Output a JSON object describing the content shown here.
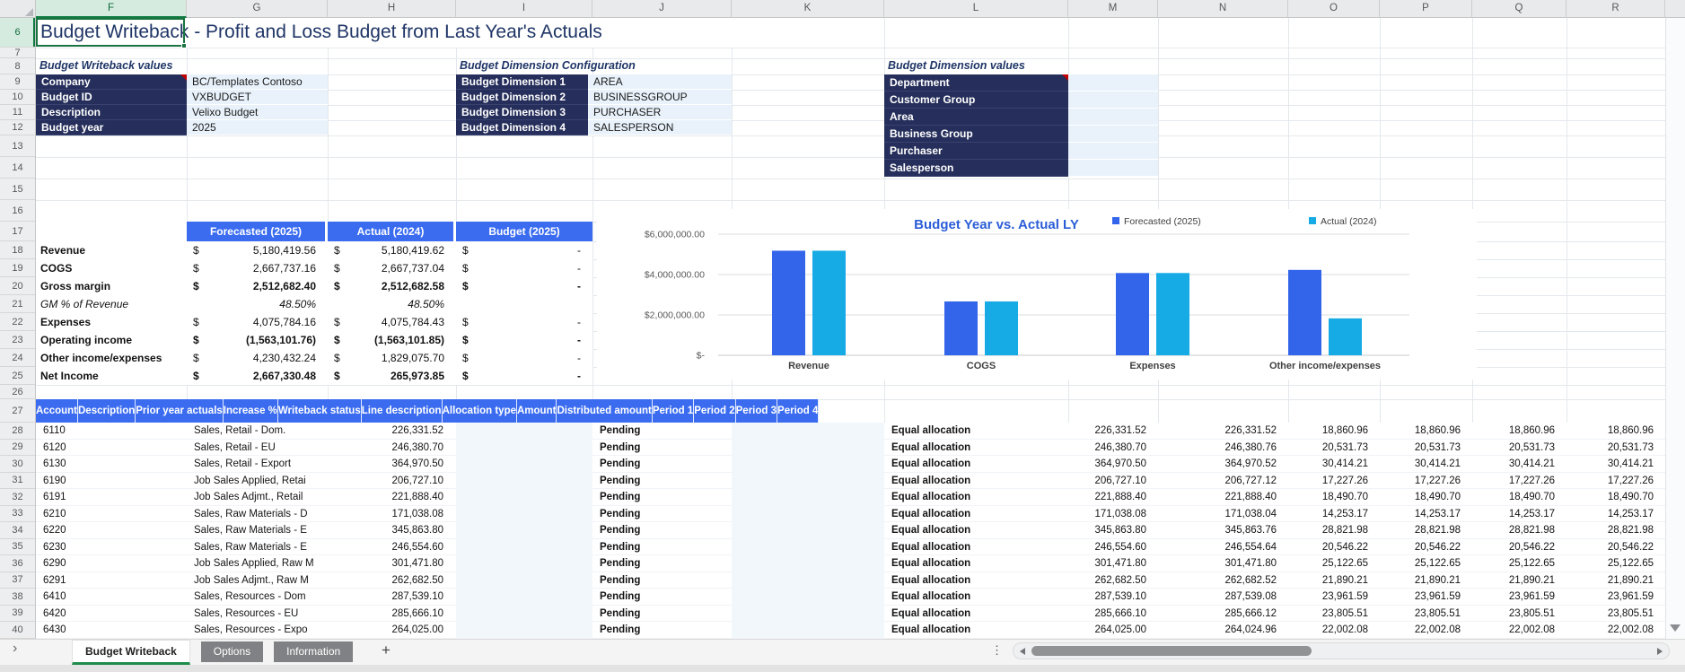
{
  "window": {
    "columns": [
      {
        "letter": "F",
        "selected": true
      },
      {
        "letter": "G"
      },
      {
        "letter": "H"
      },
      {
        "letter": "I"
      },
      {
        "letter": "J"
      },
      {
        "letter": "K"
      },
      {
        "letter": "L"
      },
      {
        "letter": "M"
      },
      {
        "letter": "N"
      },
      {
        "letter": "O"
      },
      {
        "letter": "P"
      },
      {
        "letter": "Q"
      },
      {
        "letter": "R"
      }
    ],
    "row_numbers": [
      6,
      7,
      8,
      9,
      10,
      11,
      12,
      13,
      14,
      15,
      16,
      17,
      18,
      19,
      20,
      21,
      22,
      23,
      24,
      25,
      26,
      27,
      28,
      29,
      30,
      31,
      32,
      33,
      34,
      35,
      36,
      37,
      38,
      39,
      40
    ],
    "selected_row": 6
  },
  "title": "Budget Writeback - Profit and Loss Budget from Last Year's Actuals",
  "icons": {
    "sheet_nav": "›",
    "overflow_dots": "⋮"
  },
  "sections": {
    "writeback": {
      "title": "Budget Writeback values",
      "rows": [
        {
          "label": "Company",
          "value": "BC/Templates Contoso",
          "has_note": true
        },
        {
          "label": "Budget ID",
          "value": "VXBUDGET"
        },
        {
          "label": "Description",
          "value": "Velixo Budget"
        },
        {
          "label": "Budget year",
          "value": "2025"
        }
      ]
    },
    "dimension_config": {
      "title": "Budget Dimension Configuration",
      "rows": [
        {
          "label": "Budget Dimension 1",
          "value": "AREA"
        },
        {
          "label": "Budget Dimension 2",
          "value": "BUSINESSGROUP"
        },
        {
          "label": "Budget Dimension 3",
          "value": "PURCHASER"
        },
        {
          "label": "Budget Dimension 4",
          "value": "SALESPERSON"
        }
      ]
    },
    "dimension_values": {
      "title": "Budget Dimension values",
      "rows": [
        {
          "label": "Department",
          "value": "",
          "has_note": true
        },
        {
          "label": "Customer Group",
          "value": ""
        },
        {
          "label": "Area",
          "value": ""
        },
        {
          "label": "Business Group",
          "value": ""
        },
        {
          "label": "Purchaser",
          "value": ""
        },
        {
          "label": "Salesperson",
          "value": ""
        }
      ]
    }
  },
  "pnl": {
    "currency_symbol": "$",
    "headers": [
      "Forecasted (2025)",
      "Actual (2024)",
      "Budget (2025)"
    ],
    "rows": [
      {
        "label": "Revenue",
        "fc": "5,180,419.56",
        "ac": "5,180,419.62",
        "bd": "-",
        "currency": true
      },
      {
        "label": "COGS",
        "fc": "2,667,737.16",
        "ac": "2,667,737.04",
        "bd": "-",
        "currency": true
      },
      {
        "label": "Gross margin",
        "fc": "2,512,682.40",
        "ac": "2,512,682.58",
        "bd": "-",
        "currency": true,
        "bold_values": true
      },
      {
        "label": "GM % of Revenue",
        "fc": "48.50%",
        "ac": "48.50%",
        "bd": "",
        "italic": true
      },
      {
        "label": "Expenses",
        "fc": "4,075,784.16",
        "ac": "4,075,784.43",
        "bd": "-",
        "currency": true
      },
      {
        "label": "Operating income",
        "fc": "(1,563,101.76)",
        "ac": "(1,563,101.85)",
        "bd": "-",
        "currency": true,
        "bold_values": true
      },
      {
        "label": "Other income/expenses",
        "fc": "4,230,432.24",
        "ac": "1,829,075.70",
        "bd": "-",
        "currency": true
      },
      {
        "label": "Net Income",
        "fc": "2,667,330.48",
        "ac": "265,973.85",
        "bd": "-",
        "currency": true,
        "bold_values": true
      }
    ]
  },
  "chart_data": {
    "type": "bar",
    "title": "Budget Year vs. Actual LY",
    "title_color": "#2B5DD7",
    "categories": [
      "Revenue",
      "COGS",
      "Expenses",
      "Other income/expenses"
    ],
    "series": [
      {
        "name": "Forecasted (2025)",
        "color": "#3365EB",
        "values": [
          5180419.56,
          2667737.16,
          4075784.16,
          4230432.24
        ]
      },
      {
        "name": "Actual (2024)",
        "color": "#17ABE5",
        "values": [
          5180419.62,
          2667737.04,
          4075784.43,
          1829075.7
        ]
      }
    ],
    "y_ticks": [
      "$-",
      "$2,000,000.00",
      "$4,000,000.00",
      "$6,000,000.00"
    ],
    "y_tick_values": [
      0,
      2000000,
      4000000,
      6000000
    ],
    "ylim": [
      0,
      6000000
    ],
    "grid": true,
    "legend_position": "top-right"
  },
  "table": {
    "headers": [
      "Account",
      "Description",
      "Prior year actuals",
      "Increase %",
      "Writeback status",
      "Line description",
      "Allocation type",
      "Amount",
      "Distributed amount",
      "Period 1",
      "Period 2",
      "Period 3",
      "Period 4"
    ],
    "rows": [
      [
        "6110",
        "Sales, Retail - Dom.",
        "226,331.52",
        "",
        "Pending",
        "",
        "Equal allocation",
        "226,331.52",
        "226,331.52",
        "18,860.96",
        "18,860.96",
        "18,860.96",
        "18,860.96"
      ],
      [
        "6120",
        "Sales, Retail - EU",
        "246,380.70",
        "",
        "Pending",
        "",
        "Equal allocation",
        "246,380.70",
        "246,380.76",
        "20,531.73",
        "20,531.73",
        "20,531.73",
        "20,531.73"
      ],
      [
        "6130",
        "Sales, Retail - Export",
        "364,970.50",
        "",
        "Pending",
        "",
        "Equal allocation",
        "364,970.50",
        "364,970.52",
        "30,414.21",
        "30,414.21",
        "30,414.21",
        "30,414.21"
      ],
      [
        "6190",
        "Job Sales Applied, Retai",
        "206,727.10",
        "",
        "Pending",
        "",
        "Equal allocation",
        "206,727.10",
        "206,727.12",
        "17,227.26",
        "17,227.26",
        "17,227.26",
        "17,227.26"
      ],
      [
        "6191",
        "Job Sales Adjmt., Retail",
        "221,888.40",
        "",
        "Pending",
        "",
        "Equal allocation",
        "221,888.40",
        "221,888.40",
        "18,490.70",
        "18,490.70",
        "18,490.70",
        "18,490.70"
      ],
      [
        "6210",
        "Sales, Raw Materials - D",
        "171,038.08",
        "",
        "Pending",
        "",
        "Equal allocation",
        "171,038.08",
        "171,038.04",
        "14,253.17",
        "14,253.17",
        "14,253.17",
        "14,253.17"
      ],
      [
        "6220",
        "Sales, Raw Materials - E",
        "345,863.80",
        "",
        "Pending",
        "",
        "Equal allocation",
        "345,863.80",
        "345,863.76",
        "28,821.98",
        "28,821.98",
        "28,821.98",
        "28,821.98"
      ],
      [
        "6230",
        "Sales, Raw Materials - E",
        "246,554.60",
        "",
        "Pending",
        "",
        "Equal allocation",
        "246,554.60",
        "246,554.64",
        "20,546.22",
        "20,546.22",
        "20,546.22",
        "20,546.22"
      ],
      [
        "6290",
        "Job Sales Applied, Raw M",
        "301,471.80",
        "",
        "Pending",
        "",
        "Equal allocation",
        "301,471.80",
        "301,471.80",
        "25,122.65",
        "25,122.65",
        "25,122.65",
        "25,122.65"
      ],
      [
        "6291",
        "Job Sales Adjmt., Raw M",
        "262,682.50",
        "",
        "Pending",
        "",
        "Equal allocation",
        "262,682.50",
        "262,682.52",
        "21,890.21",
        "21,890.21",
        "21,890.21",
        "21,890.21"
      ],
      [
        "6410",
        "Sales, Resources - Dom",
        "287,539.10",
        "",
        "Pending",
        "",
        "Equal allocation",
        "287,539.10",
        "287,539.08",
        "23,961.59",
        "23,961.59",
        "23,961.59",
        "23,961.59"
      ],
      [
        "6420",
        "Sales, Resources - EU",
        "285,666.10",
        "",
        "Pending",
        "",
        "Equal allocation",
        "285,666.10",
        "285,666.12",
        "23,805.51",
        "23,805.51",
        "23,805.51",
        "23,805.51"
      ],
      [
        "6430",
        "Sales, Resources - Expo",
        "264,025.00",
        "",
        "Pending",
        "",
        "Equal allocation",
        "264,025.00",
        "264,024.96",
        "22,002.08",
        "22,002.08",
        "22,002.08",
        "22,002.08"
      ]
    ]
  },
  "sheet_tabs": {
    "tabs": [
      {
        "label": "Budget Writeback",
        "active": true
      },
      {
        "label": "Options"
      },
      {
        "label": "Information"
      }
    ],
    "add_label": "+"
  }
}
